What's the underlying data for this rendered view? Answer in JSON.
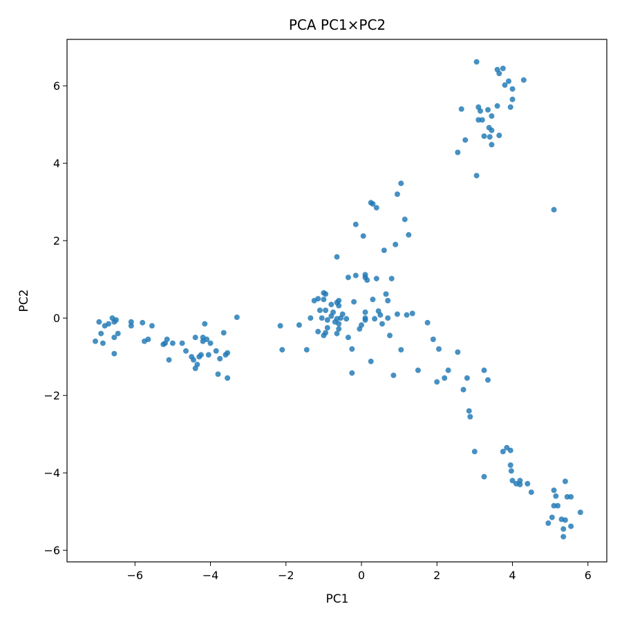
{
  "chart_data": {
    "type": "scatter",
    "title": "PCA PC1×PC2",
    "xlabel": "PC1",
    "ylabel": "PC2",
    "xlim": [
      -7.8,
      6.5
    ],
    "ylim": [
      -6.3,
      7.2
    ],
    "xticks": [
      -6,
      -4,
      -2,
      0,
      2,
      4,
      6
    ],
    "yticks": [
      -6,
      -4,
      -2,
      0,
      2,
      4,
      6
    ],
    "xtick_labels": [
      "−6",
      "−4",
      "−2",
      "0",
      "2",
      "4",
      "6"
    ],
    "ytick_labels": [
      "−6",
      "−4",
      "−2",
      "0",
      "2",
      "4",
      "6"
    ],
    "grid": false,
    "color": "#1f77b4",
    "series": [
      {
        "points": [
          [
            -7.05,
            -0.6
          ],
          [
            -6.95,
            -0.1
          ],
          [
            -6.9,
            -0.4
          ],
          [
            -6.85,
            -0.65
          ],
          [
            -6.8,
            -0.2
          ],
          [
            -6.7,
            -0.15
          ],
          [
            -6.6,
            0.0
          ],
          [
            -6.55,
            -0.1
          ],
          [
            -6.5,
            -0.05
          ],
          [
            -6.45,
            -0.4
          ],
          [
            -6.55,
            -0.5
          ],
          [
            -6.55,
            -0.92
          ],
          [
            -6.1,
            -0.1
          ],
          [
            -6.1,
            -0.2
          ],
          [
            -5.8,
            -0.12
          ],
          [
            -5.75,
            -0.6
          ],
          [
            -5.65,
            -0.55
          ],
          [
            -5.55,
            -0.2
          ],
          [
            -5.25,
            -0.68
          ],
          [
            -5.2,
            -0.65
          ],
          [
            -5.15,
            -0.55
          ],
          [
            -5.1,
            -1.08
          ],
          [
            -5.0,
            -0.65
          ],
          [
            -4.75,
            -0.65
          ],
          [
            -4.65,
            -0.85
          ],
          [
            -4.5,
            -1.0
          ],
          [
            -4.45,
            -1.08
          ],
          [
            -4.4,
            -0.5
          ],
          [
            -4.4,
            -1.3
          ],
          [
            -4.35,
            -1.2
          ],
          [
            -4.3,
            -1.0
          ],
          [
            -4.25,
            -0.95
          ],
          [
            -4.2,
            -0.5
          ],
          [
            -4.2,
            -0.6
          ],
          [
            -4.15,
            -0.15
          ],
          [
            -4.1,
            -0.55
          ],
          [
            -4.05,
            -0.95
          ],
          [
            -4.0,
            -0.65
          ],
          [
            -3.85,
            -0.85
          ],
          [
            -3.8,
            -1.45
          ],
          [
            -3.75,
            -1.05
          ],
          [
            -3.65,
            -0.38
          ],
          [
            -3.6,
            -0.95
          ],
          [
            -3.55,
            -1.55
          ],
          [
            -3.55,
            -0.9
          ],
          [
            -3.3,
            0.02
          ],
          [
            -2.15,
            -0.2
          ],
          [
            -2.1,
            -0.82
          ],
          [
            -1.65,
            -0.18
          ],
          [
            -1.45,
            -0.82
          ],
          [
            -1.35,
            0.0
          ],
          [
            -1.25,
            0.45
          ],
          [
            -1.15,
            0.5
          ],
          [
            -1.15,
            -0.35
          ],
          [
            -1.1,
            0.2
          ],
          [
            -1.05,
            0.0
          ],
          [
            -1.0,
            0.48
          ],
          [
            -1.0,
            0.65
          ],
          [
            -0.95,
            0.62
          ],
          [
            -0.95,
            0.2
          ],
          [
            -1.0,
            -0.45
          ],
          [
            -0.95,
            -0.38
          ],
          [
            -0.9,
            -0.05
          ],
          [
            -0.9,
            -0.25
          ],
          [
            -0.8,
            0.05
          ],
          [
            -0.8,
            0.35
          ],
          [
            -0.75,
            0.15
          ],
          [
            -0.7,
            -0.1
          ],
          [
            -0.65,
            0.4
          ],
          [
            -0.65,
            -0.02
          ],
          [
            -0.65,
            -0.4
          ],
          [
            -0.6,
            0.45
          ],
          [
            -0.6,
            0.32
          ],
          [
            -0.6,
            -0.28
          ],
          [
            -0.6,
            -0.15
          ],
          [
            -0.55,
            0.0
          ],
          [
            -0.5,
            0.1
          ],
          [
            -0.65,
            1.58
          ],
          [
            -0.35,
            1.05
          ],
          [
            -0.35,
            -0.5
          ],
          [
            -0.2,
            0.42
          ],
          [
            -0.25,
            -0.8
          ],
          [
            -0.25,
            -1.42
          ],
          [
            -0.15,
            1.1
          ],
          [
            -0.15,
            2.42
          ],
          [
            -0.05,
            -0.28
          ],
          [
            0.0,
            -0.18
          ],
          [
            0.05,
            2.12
          ],
          [
            0.1,
            1.05
          ],
          [
            0.1,
            1.12
          ],
          [
            0.1,
            0.15
          ],
          [
            0.1,
            -0.05
          ],
          [
            0.15,
            0.98
          ],
          [
            0.25,
            2.98
          ],
          [
            0.3,
            2.95
          ],
          [
            0.3,
            0.48
          ],
          [
            0.35,
            -0.02
          ],
          [
            0.4,
            2.85
          ],
          [
            0.4,
            1.02
          ],
          [
            0.45,
            0.18
          ],
          [
            0.5,
            0.08
          ],
          [
            0.55,
            -0.15
          ],
          [
            0.6,
            1.75
          ],
          [
            0.65,
            0.62
          ],
          [
            0.7,
            0.45
          ],
          [
            0.75,
            -0.45
          ],
          [
            0.7,
            0.0
          ],
          [
            0.8,
            1.02
          ],
          [
            0.85,
            -1.48
          ],
          [
            0.9,
            1.9
          ],
          [
            0.95,
            0.1
          ],
          [
            0.95,
            3.2
          ],
          [
            1.05,
            3.48
          ],
          [
            1.05,
            -0.82
          ],
          [
            1.15,
            2.55
          ],
          [
            1.2,
            0.08
          ],
          [
            1.25,
            2.15
          ],
          [
            1.35,
            0.12
          ],
          [
            0.1,
            0.0
          ],
          [
            0.25,
            -1.12
          ],
          [
            -0.4,
            -0.02
          ],
          [
            1.5,
            -1.35
          ],
          [
            1.75,
            -0.12
          ],
          [
            1.9,
            -0.55
          ],
          [
            2.0,
            -1.65
          ],
          [
            2.05,
            -0.8
          ],
          [
            2.2,
            -1.55
          ],
          [
            2.3,
            -1.35
          ],
          [
            2.55,
            -0.88
          ],
          [
            2.7,
            -1.85
          ],
          [
            2.8,
            -1.55
          ],
          [
            2.85,
            -2.4
          ],
          [
            2.88,
            -2.55
          ],
          [
            3.0,
            -3.45
          ],
          [
            3.25,
            -1.35
          ],
          [
            3.25,
            -4.1
          ],
          [
            3.35,
            -1.6
          ],
          [
            3.75,
            -3.45
          ],
          [
            3.85,
            -3.35
          ],
          [
            3.95,
            -3.42
          ],
          [
            3.95,
            -3.8
          ],
          [
            3.97,
            -3.95
          ],
          [
            4.0,
            -4.2
          ],
          [
            4.1,
            -4.28
          ],
          [
            4.2,
            -4.2
          ],
          [
            4.2,
            -4.3
          ],
          [
            4.4,
            -4.28
          ],
          [
            4.5,
            -4.5
          ],
          [
            4.95,
            -5.3
          ],
          [
            5.05,
            -5.15
          ],
          [
            5.1,
            -4.45
          ],
          [
            5.15,
            -4.6
          ],
          [
            5.1,
            -4.85
          ],
          [
            5.2,
            -4.85
          ],
          [
            5.3,
            -5.2
          ],
          [
            5.35,
            -5.45
          ],
          [
            5.35,
            -5.65
          ],
          [
            5.4,
            -5.22
          ],
          [
            5.4,
            -4.22
          ],
          [
            5.45,
            -4.62
          ],
          [
            5.55,
            -4.62
          ],
          [
            5.55,
            -5.38
          ],
          [
            5.8,
            -5.02
          ],
          [
            5.1,
            2.8
          ],
          [
            2.55,
            4.28
          ],
          [
            2.65,
            5.4
          ],
          [
            2.75,
            4.6
          ],
          [
            3.05,
            6.62
          ],
          [
            3.05,
            3.68
          ],
          [
            3.1,
            5.45
          ],
          [
            3.1,
            5.12
          ],
          [
            3.15,
            5.35
          ],
          [
            3.2,
            5.12
          ],
          [
            3.25,
            4.7
          ],
          [
            3.35,
            5.38
          ],
          [
            3.38,
            4.92
          ],
          [
            3.45,
            4.85
          ],
          [
            3.45,
            4.48
          ],
          [
            3.4,
            4.68
          ],
          [
            3.45,
            5.22
          ],
          [
            3.6,
            5.48
          ],
          [
            3.6,
            6.42
          ],
          [
            3.65,
            6.32
          ],
          [
            3.65,
            4.72
          ],
          [
            3.75,
            6.45
          ],
          [
            3.8,
            6.02
          ],
          [
            3.9,
            6.12
          ],
          [
            3.95,
            5.45
          ],
          [
            4.0,
            5.65
          ],
          [
            4.0,
            5.92
          ],
          [
            4.3,
            6.15
          ]
        ]
      }
    ]
  }
}
